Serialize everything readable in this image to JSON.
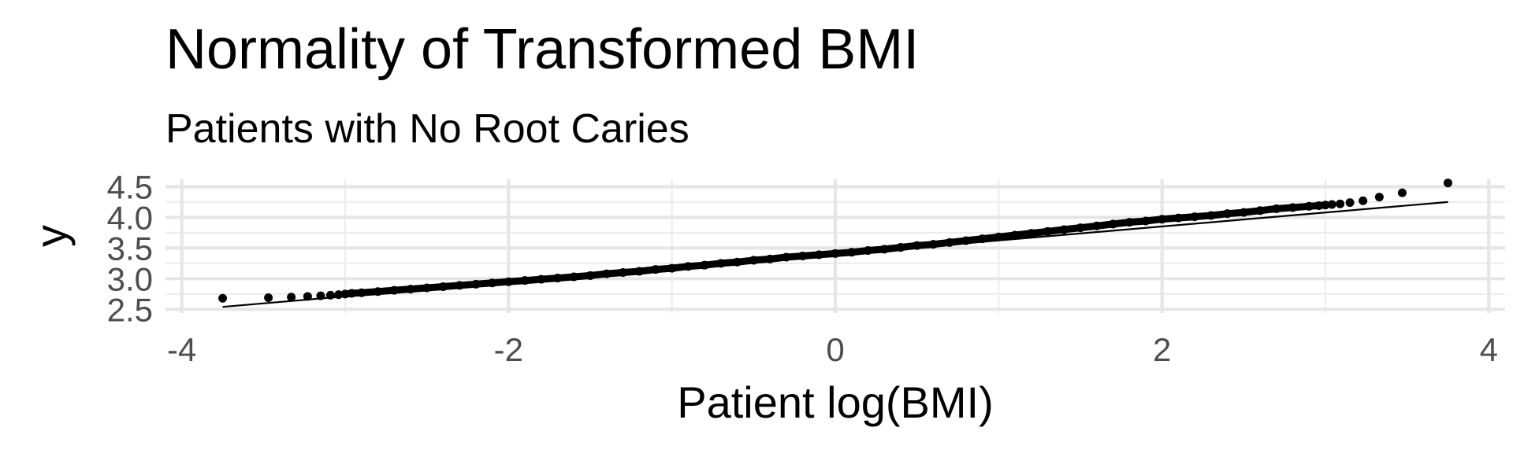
{
  "chart_data": {
    "type": "scatter",
    "title": "Normality of Transformed BMI",
    "subtitle": "Patients with No Root Caries",
    "xlabel": "Patient log(BMI)",
    "ylabel": "y",
    "xlim": [
      -4.1,
      4.1
    ],
    "ylim": [
      2.44,
      4.62
    ],
    "x_ticks": [
      -4,
      -2,
      0,
      2,
      4
    ],
    "x_tick_labels": [
      "-4",
      "-2",
      "0",
      "2",
      "4"
    ],
    "y_ticks": [
      2.5,
      3.0,
      3.5,
      4.0,
      4.5
    ],
    "y_tick_labels": [
      "2.5",
      "3.0",
      "3.5",
      "4.0",
      "4.5"
    ],
    "grid": true,
    "reference_line": {
      "x": [
        -3.75,
        3.75
      ],
      "y": [
        2.54,
        4.25
      ]
    },
    "series": [
      {
        "x": [
          -3.75,
          -3.47,
          -3.33,
          -3.23,
          -3.15,
          -3.09,
          -3.04,
          -3.0,
          -2.96,
          -2.9,
          -2.8,
          -2.7,
          -2.6,
          -2.5,
          -2.4,
          -2.3,
          -2.2,
          -2.1,
          -2.0,
          -1.9,
          -1.8,
          -1.7,
          -1.6,
          -1.5,
          -1.4,
          -1.3,
          -1.2,
          -1.1,
          -1.0,
          -0.9,
          -0.8,
          -0.7,
          -0.6,
          -0.5,
          -0.4,
          -0.3,
          -0.2,
          -0.1,
          0.0,
          0.1,
          0.2,
          0.3,
          0.4,
          0.5,
          0.6,
          0.7,
          0.8,
          0.9,
          1.0,
          1.1,
          1.2,
          1.3,
          1.4,
          1.5,
          1.6,
          1.7,
          1.8,
          1.9,
          2.0,
          2.1,
          2.2,
          2.3,
          2.4,
          2.5,
          2.6,
          2.7,
          2.8,
          2.9,
          2.96,
          3.0,
          3.04,
          3.09,
          3.15,
          3.23,
          3.33,
          3.47,
          3.75
        ],
        "y": [
          2.68,
          2.69,
          2.7,
          2.71,
          2.72,
          2.73,
          2.74,
          2.75,
          2.76,
          2.77,
          2.79,
          2.81,
          2.83,
          2.85,
          2.87,
          2.89,
          2.91,
          2.93,
          2.95,
          2.97,
          2.99,
          3.01,
          3.03,
          3.05,
          3.08,
          3.1,
          3.12,
          3.15,
          3.17,
          3.2,
          3.22,
          3.25,
          3.27,
          3.3,
          3.32,
          3.35,
          3.37,
          3.39,
          3.41,
          3.43,
          3.46,
          3.48,
          3.51,
          3.54,
          3.56,
          3.59,
          3.62,
          3.65,
          3.68,
          3.71,
          3.74,
          3.77,
          3.8,
          3.83,
          3.86,
          3.89,
          3.92,
          3.94,
          3.97,
          3.99,
          4.01,
          4.03,
          4.06,
          4.08,
          4.11,
          4.14,
          4.16,
          4.18,
          4.19,
          4.2,
          4.21,
          4.22,
          4.24,
          4.27,
          4.33,
          4.4,
          4.56
        ]
      }
    ]
  }
}
